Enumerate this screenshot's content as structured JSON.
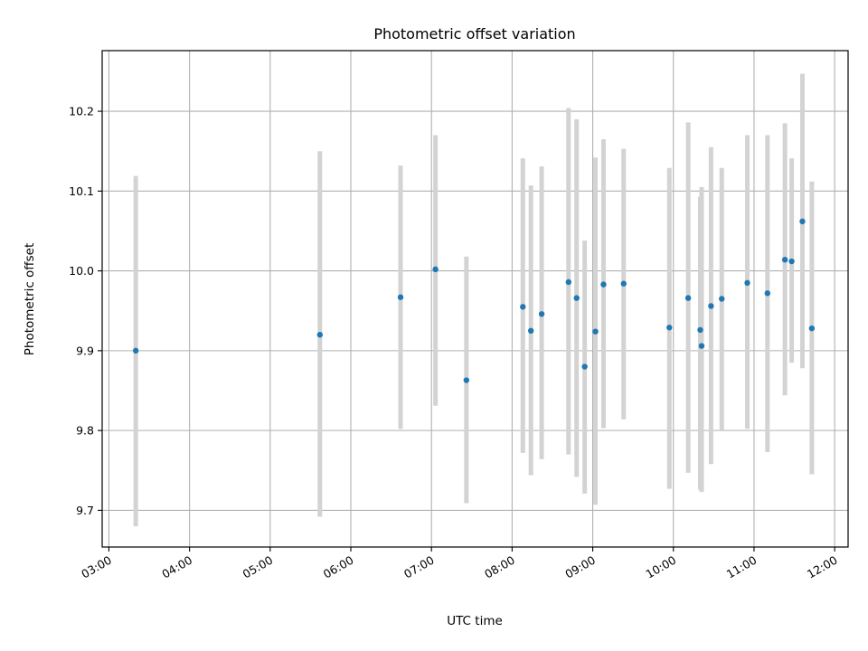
{
  "chart_data": {
    "type": "scatter",
    "title": "Photometric offset variation",
    "xlabel": "UTC time",
    "ylabel": "Photometric offset",
    "xlim": [
      "02:55",
      "12:10"
    ],
    "ylim": [
      9.654,
      10.276
    ],
    "grid": true,
    "x_ticks": [
      "03:00",
      "04:00",
      "05:00",
      "06:00",
      "07:00",
      "08:00",
      "09:00",
      "10:00",
      "11:00",
      "12:00"
    ],
    "y_ticks": [
      "9.7",
      "9.8",
      "9.9",
      "10.0",
      "10.1",
      "10.2"
    ],
    "colors": {
      "points": "#1f77b4",
      "error_bars": "#d3d3d3",
      "grid": "#b0b0b0"
    },
    "series": [
      {
        "x": [
          "03:20",
          "05:37",
          "06:37",
          "07:03",
          "07:26",
          "08:08",
          "08:14",
          "08:22",
          "08:42",
          "08:48",
          "08:54",
          "09:02",
          "09:08",
          "09:23",
          "09:57",
          "10:11",
          "10:20",
          "10:21",
          "10:28",
          "10:36",
          "10:55",
          "11:10",
          "11:23",
          "11:28",
          "11:36",
          "11:43"
        ],
        "y": [
          9.9,
          9.92,
          9.967,
          10.002,
          9.863,
          9.955,
          9.925,
          9.946,
          9.986,
          9.966,
          9.88,
          9.924,
          9.983,
          9.984,
          9.929,
          9.966,
          9.926,
          9.906,
          9.956,
          9.965,
          9.985,
          9.972,
          10.014,
          10.012,
          10.062,
          9.928
        ],
        "ylow": [
          9.68,
          9.692,
          9.802,
          9.831,
          9.709,
          9.772,
          9.744,
          9.764,
          9.77,
          9.742,
          9.721,
          9.707,
          9.803,
          9.814,
          9.727,
          9.747,
          9.726,
          9.723,
          9.758,
          9.8,
          9.802,
          9.773,
          9.844,
          9.885,
          9.878,
          9.745
        ],
        "yhigh": [
          10.119,
          10.15,
          10.132,
          10.17,
          10.018,
          10.141,
          10.107,
          10.131,
          10.204,
          10.19,
          10.038,
          10.142,
          10.165,
          10.153,
          10.129,
          10.186,
          10.093,
          10.105,
          10.155,
          10.129,
          10.17,
          10.17,
          10.185,
          10.141,
          10.247,
          10.112
        ]
      }
    ]
  }
}
